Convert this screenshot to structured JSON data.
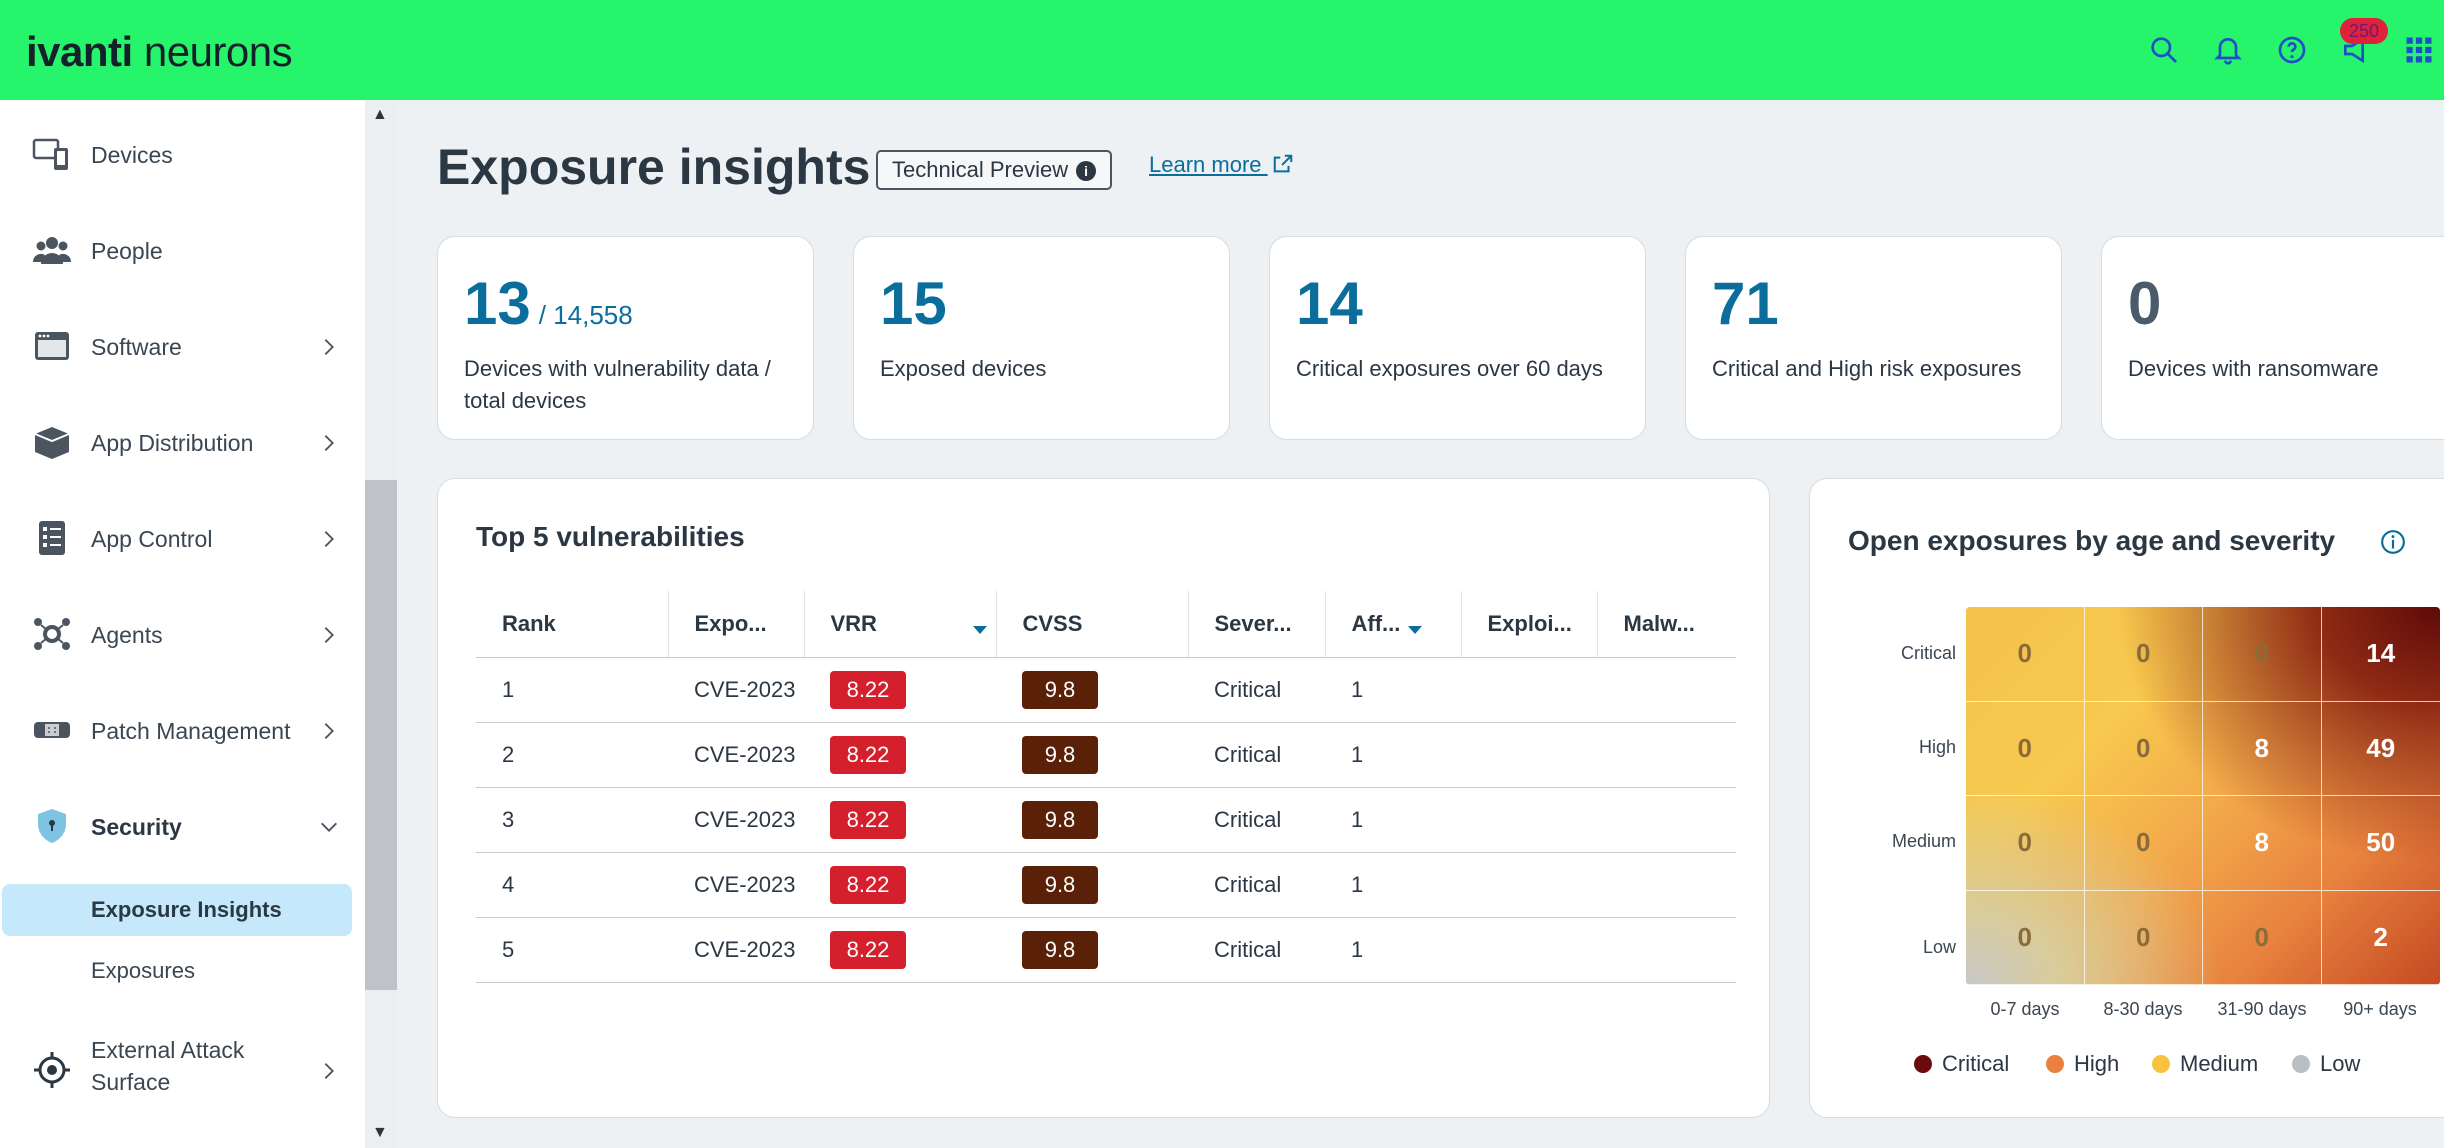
{
  "header": {
    "logo_brand": "ivanti",
    "logo_product": "neurons",
    "notification_count": "250",
    "icons": [
      "search-icon",
      "bell-icon",
      "help-icon",
      "announcement-icon",
      "apps-grid-icon"
    ]
  },
  "sidebar": {
    "items": [
      {
        "label": "Devices",
        "icon": "devices-icon"
      },
      {
        "label": "People",
        "icon": "people-icon"
      },
      {
        "label": "Software",
        "icon": "software-icon"
      },
      {
        "label": "App Distribution",
        "icon": "app-distribution-icon"
      },
      {
        "label": "App Control",
        "icon": "app-control-icon"
      },
      {
        "label": "Agents",
        "icon": "agents-icon"
      },
      {
        "label": "Patch Management",
        "icon": "patch-icon"
      },
      {
        "label": "Security",
        "icon": "shield-icon"
      },
      {
        "label": "External Attack Surface",
        "icon": "target-icon"
      }
    ],
    "sub_items": [
      "Exposure Insights",
      "Exposures"
    ],
    "active": "Exposure Insights"
  },
  "page": {
    "title": "Exposure insights",
    "badge": "Technical Preview",
    "learn_more": "Learn more"
  },
  "kpis": [
    {
      "value": "13",
      "sub": "/  14,558",
      "caption": "Devices with vulnerability data / total devices"
    },
    {
      "value": "15",
      "caption": "Exposed devices"
    },
    {
      "value": "14",
      "caption": "Critical exposures over 60 days"
    },
    {
      "value": "71",
      "caption": "Critical and High risk exposures"
    },
    {
      "value": "0",
      "caption": "Devices with ransomware"
    }
  ],
  "top_vulns": {
    "title": "Top 5 vulnerabilities",
    "columns": [
      "Rank",
      "Expo...",
      "VRR",
      "CVSS",
      "Sever...",
      "Aff...",
      "Exploi...",
      "Malw..."
    ],
    "rows": [
      {
        "rank": "1",
        "exposure": "CVE-2023",
        "vrr": "8.22",
        "cvss": "9.8",
        "severity": "Critical",
        "affected": "1"
      },
      {
        "rank": "2",
        "exposure": "CVE-2023",
        "vrr": "8.22",
        "cvss": "9.8",
        "severity": "Critical",
        "affected": "1"
      },
      {
        "rank": "3",
        "exposure": "CVE-2023",
        "vrr": "8.22",
        "cvss": "9.8",
        "severity": "Critical",
        "affected": "1"
      },
      {
        "rank": "4",
        "exposure": "CVE-2023",
        "vrr": "8.22",
        "cvss": "9.8",
        "severity": "Critical",
        "affected": "1"
      },
      {
        "rank": "5",
        "exposure": "CVE-2023",
        "vrr": "8.22",
        "cvss": "9.8",
        "severity": "Critical",
        "affected": "1"
      }
    ]
  },
  "chart_data": {
    "type": "heatmap",
    "title": "Open exposures by age and severity",
    "x_categories": [
      "0-7 days",
      "8-30 days",
      "31-90 days",
      "90+ days"
    ],
    "y_categories": [
      "Critical",
      "High",
      "Medium",
      "Low"
    ],
    "values": [
      [
        0,
        0,
        0,
        14
      ],
      [
        0,
        0,
        8,
        49
      ],
      [
        0,
        0,
        8,
        50
      ],
      [
        0,
        0,
        0,
        2
      ]
    ],
    "legend": [
      {
        "name": "Critical",
        "color": "#6b0a0a"
      },
      {
        "name": "High",
        "color": "#e8823e"
      },
      {
        "name": "Medium",
        "color": "#f8c23c"
      },
      {
        "name": "Low",
        "color": "#b8bec4"
      }
    ]
  },
  "colors": {
    "header_bg": "#26f56c",
    "accent": "#0a6d9c",
    "vrr_pill": "#d4202c",
    "cvss_pill": "#5a2008",
    "active_nav": "#c5e9fb"
  }
}
